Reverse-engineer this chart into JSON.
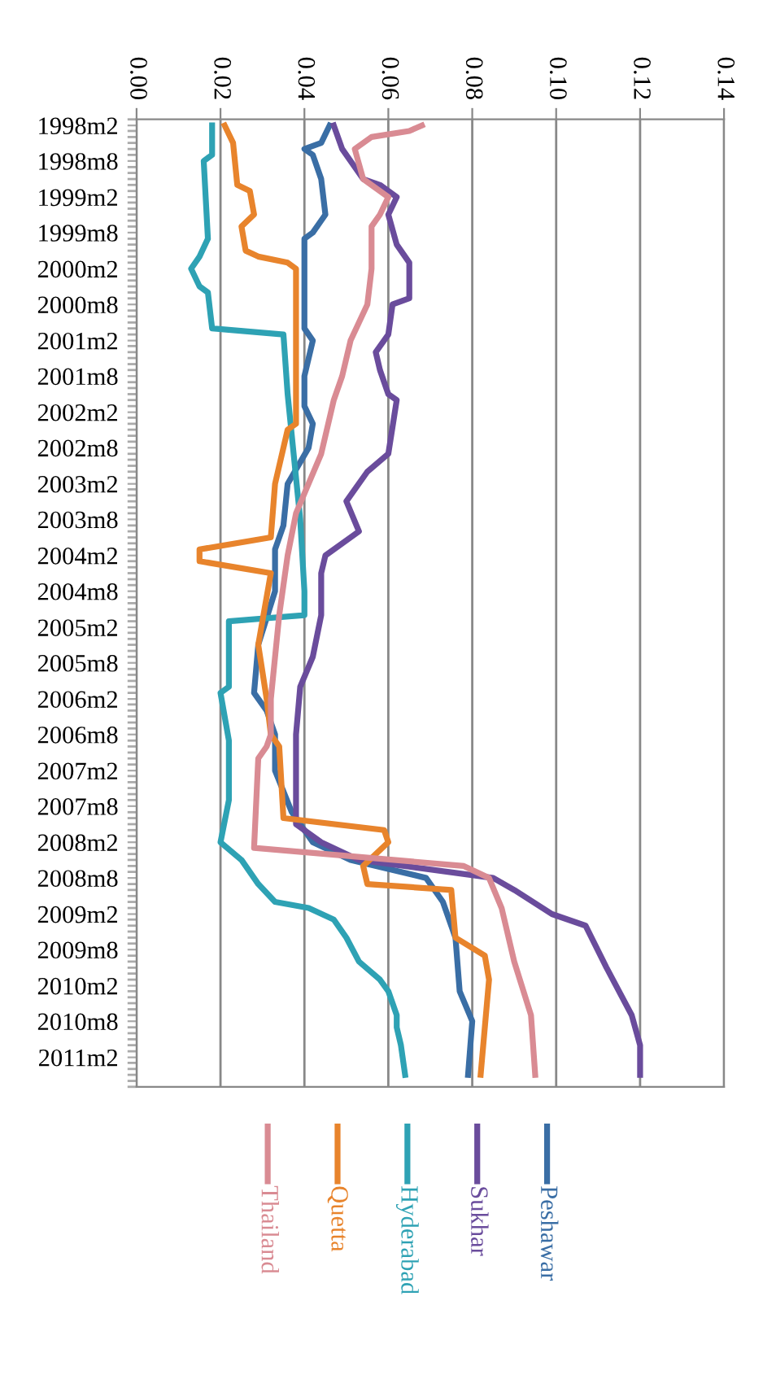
{
  "chart_data": {
    "type": "line",
    "orientation": "horizontal",
    "grid": "x",
    "legend": "bottom",
    "marker": "none",
    "line_style": "solid",
    "xlim": [
      0,
      0.14
    ],
    "xticks": [
      {
        "value": 0,
        "label": "0.00"
      },
      {
        "value": 0.02,
        "label": "0.02"
      },
      {
        "value": 0.04,
        "label": "0.04"
      },
      {
        "value": 0.06,
        "label": "0.06"
      },
      {
        "value": 0.08,
        "label": "0.08"
      },
      {
        "value": 0.1,
        "label": "0.10"
      },
      {
        "value": 0.12,
        "label": "0.12"
      },
      {
        "value": 0.14,
        "label": "0.14"
      }
    ],
    "ylim": [
      "2011-07",
      "1998-01"
    ],
    "yticks": [
      {
        "value": "1998-02",
        "label": "1998m2"
      },
      {
        "value": "1998-08",
        "label": "1998m8"
      },
      {
        "value": "1999-02",
        "label": "1999m2"
      },
      {
        "value": "1999-08",
        "label": "1999m8"
      },
      {
        "value": "2000-02",
        "label": "2000m2"
      },
      {
        "value": "2000-08",
        "label": "2000m8"
      },
      {
        "value": "2001-02",
        "label": "2001m2"
      },
      {
        "value": "2001-08",
        "label": "2001m8"
      },
      {
        "value": "2002-02",
        "label": "2002m2"
      },
      {
        "value": "2002-08",
        "label": "2002m8"
      },
      {
        "value": "2003-02",
        "label": "2003m2"
      },
      {
        "value": "2003-08",
        "label": "2003m8"
      },
      {
        "value": "2004-02",
        "label": "2004m2"
      },
      {
        "value": "2004-08",
        "label": "2004m8"
      },
      {
        "value": "2005-02",
        "label": "2005m2"
      },
      {
        "value": "2005-08",
        "label": "2005m8"
      },
      {
        "value": "2006-02",
        "label": "2006m2"
      },
      {
        "value": "2006-08",
        "label": "2006m8"
      },
      {
        "value": "2007-02",
        "label": "2007m2"
      },
      {
        "value": "2007-08",
        "label": "2007m8"
      },
      {
        "value": "2008-02",
        "label": "2008m2"
      },
      {
        "value": "2008-08",
        "label": "2008m8"
      },
      {
        "value": "2009-02",
        "label": "2009m2"
      },
      {
        "value": "2009-08",
        "label": "2009m8"
      },
      {
        "value": "2010-02",
        "label": "2010m2"
      },
      {
        "value": "2010-08",
        "label": "2010m8"
      },
      {
        "value": "2011-02",
        "label": "2011m2"
      }
    ],
    "series": [
      {
        "name": "Peshawar",
        "color": "#3a6ea5",
        "x": [
          "1998-02",
          "1998-05",
          "1998-06",
          "1998-07",
          "1998-11",
          "1999-05",
          "1999-08",
          "1999-09",
          "2000-12",
          "2001-02",
          "2001-08",
          "2002-01",
          "2002-04",
          "2002-08",
          "2003-02",
          "2003-09",
          "2004-01",
          "2004-08",
          "2005-05",
          "2006-01",
          "2006-04",
          "2006-08",
          "2007-02",
          "2007-09",
          "2008-02",
          "2008-05",
          "2008-08",
          "2008-12",
          "2009-06",
          "2010-03",
          "2010-08",
          "2011-05"
        ],
        "values": [
          0.046,
          0.044,
          0.04,
          0.042,
          0.044,
          0.045,
          0.042,
          0.04,
          0.04,
          0.042,
          0.04,
          0.04,
          0.042,
          0.041,
          0.036,
          0.035,
          0.033,
          0.033,
          0.029,
          0.028,
          0.031,
          0.033,
          0.033,
          0.037,
          0.042,
          0.051,
          0.069,
          0.073,
          0.076,
          0.077,
          0.08,
          0.079
        ]
      },
      {
        "name": "Sukhar",
        "color": "#6a4c9c",
        "x": [
          "1998-02",
          "1998-06",
          "1998-11",
          "1998-12",
          "1999-02",
          "1999-05",
          "1999-10",
          "2000-01",
          "2000-07",
          "2000-08",
          "2001-01",
          "2001-04",
          "2001-07",
          "2001-11",
          "2001-12",
          "2002-09",
          "2002-12",
          "2003-05",
          "2003-10",
          "2004-02",
          "2004-05",
          "2004-12",
          "2005-07",
          "2005-12",
          "2006-08",
          "2007-11",
          "2008-02",
          "2008-05",
          "2008-08",
          "2008-10",
          "2009-02",
          "2009-04",
          "2009-11",
          "2010-07",
          "2010-12",
          "2011-05"
        ],
        "values": [
          0.047,
          0.049,
          0.054,
          0.058,
          0.062,
          0.06,
          0.062,
          0.065,
          0.065,
          0.061,
          0.06,
          0.057,
          0.058,
          0.06,
          0.062,
          0.06,
          0.055,
          0.05,
          0.053,
          0.045,
          0.044,
          0.044,
          0.042,
          0.039,
          0.038,
          0.038,
          0.044,
          0.053,
          0.085,
          0.09,
          0.099,
          0.107,
          0.112,
          0.118,
          0.12,
          0.12
        ]
      },
      {
        "name": "Hyderabad",
        "color": "#2ea2b4",
        "x": [
          "1998-02",
          "1998-07",
          "1998-08",
          "1999-09",
          "1999-12",
          "2000-02",
          "2000-05",
          "2000-06",
          "2000-12",
          "2001-01",
          "2001-11",
          "2003-08",
          "2004-08",
          "2004-12",
          "2005-01",
          "2005-12",
          "2006-01",
          "2006-09",
          "2007-07",
          "2008-02",
          "2008-05",
          "2008-09",
          "2008-12",
          "2009-01",
          "2009-03",
          "2009-06",
          "2009-10",
          "2010-01",
          "2010-03",
          "2010-07",
          "2010-09",
          "2010-12",
          "2011-05"
        ],
        "values": [
          0.018,
          0.018,
          0.016,
          0.017,
          0.015,
          0.013,
          0.015,
          0.017,
          0.018,
          0.035,
          0.036,
          0.039,
          0.04,
          0.04,
          0.022,
          0.022,
          0.02,
          0.022,
          0.022,
          0.02,
          0.025,
          0.029,
          0.033,
          0.041,
          0.047,
          0.05,
          0.053,
          0.058,
          0.06,
          0.062,
          0.062,
          0.063,
          0.064
        ]
      },
      {
        "name": "Quetta",
        "color": "#e8842c",
        "x": [
          "1998-02",
          "1998-05",
          "1998-12",
          "1999-01",
          "1999-05",
          "1999-07",
          "1999-11",
          "1999-12",
          "2000-01",
          "2000-02",
          "2000-12",
          "2001-11",
          "2002-04",
          "2002-05",
          "2003-02",
          "2003-11",
          "2004-01",
          "2004-03",
          "2004-05",
          "2005-05",
          "2006-02",
          "2006-08",
          "2006-10",
          "2007-10",
          "2007-12",
          "2008-02",
          "2008-06",
          "2008-09",
          "2008-10",
          "2009-06",
          "2009-09",
          "2010-01",
          "2011-05"
        ],
        "values": [
          0.021,
          0.023,
          0.024,
          0.027,
          0.028,
          0.025,
          0.026,
          0.029,
          0.036,
          0.038,
          0.038,
          0.038,
          0.038,
          0.036,
          0.033,
          0.032,
          0.015,
          0.015,
          0.032,
          0.029,
          0.031,
          0.032,
          0.034,
          0.035,
          0.059,
          0.06,
          0.054,
          0.055,
          0.075,
          0.076,
          0.083,
          0.084,
          0.082
        ]
      },
      {
        "name": "Thailand",
        "color": "#d98b93",
        "x": [
          "1998-02",
          "1998-03",
          "1998-04",
          "1998-06",
          "1998-11",
          "1999-02",
          "1999-05",
          "1999-07",
          "2000-02",
          "2000-08",
          "2001-02",
          "2001-08",
          "2001-12",
          "2002-09",
          "2003-07",
          "2004-02",
          "2004-12",
          "2006-02",
          "2006-08",
          "2006-10",
          "2006-12",
          "2008-03",
          "2008-06",
          "2008-08",
          "2009-01",
          "2009-10",
          "2010-07",
          "2011-05"
        ],
        "values": [
          0.068,
          0.065,
          0.056,
          0.052,
          0.054,
          0.06,
          0.058,
          0.056,
          0.056,
          0.055,
          0.051,
          0.049,
          0.047,
          0.044,
          0.038,
          0.036,
          0.034,
          0.032,
          0.032,
          0.031,
          0.029,
          0.028,
          0.078,
          0.084,
          0.087,
          0.09,
          0.094,
          0.095
        ]
      }
    ]
  }
}
